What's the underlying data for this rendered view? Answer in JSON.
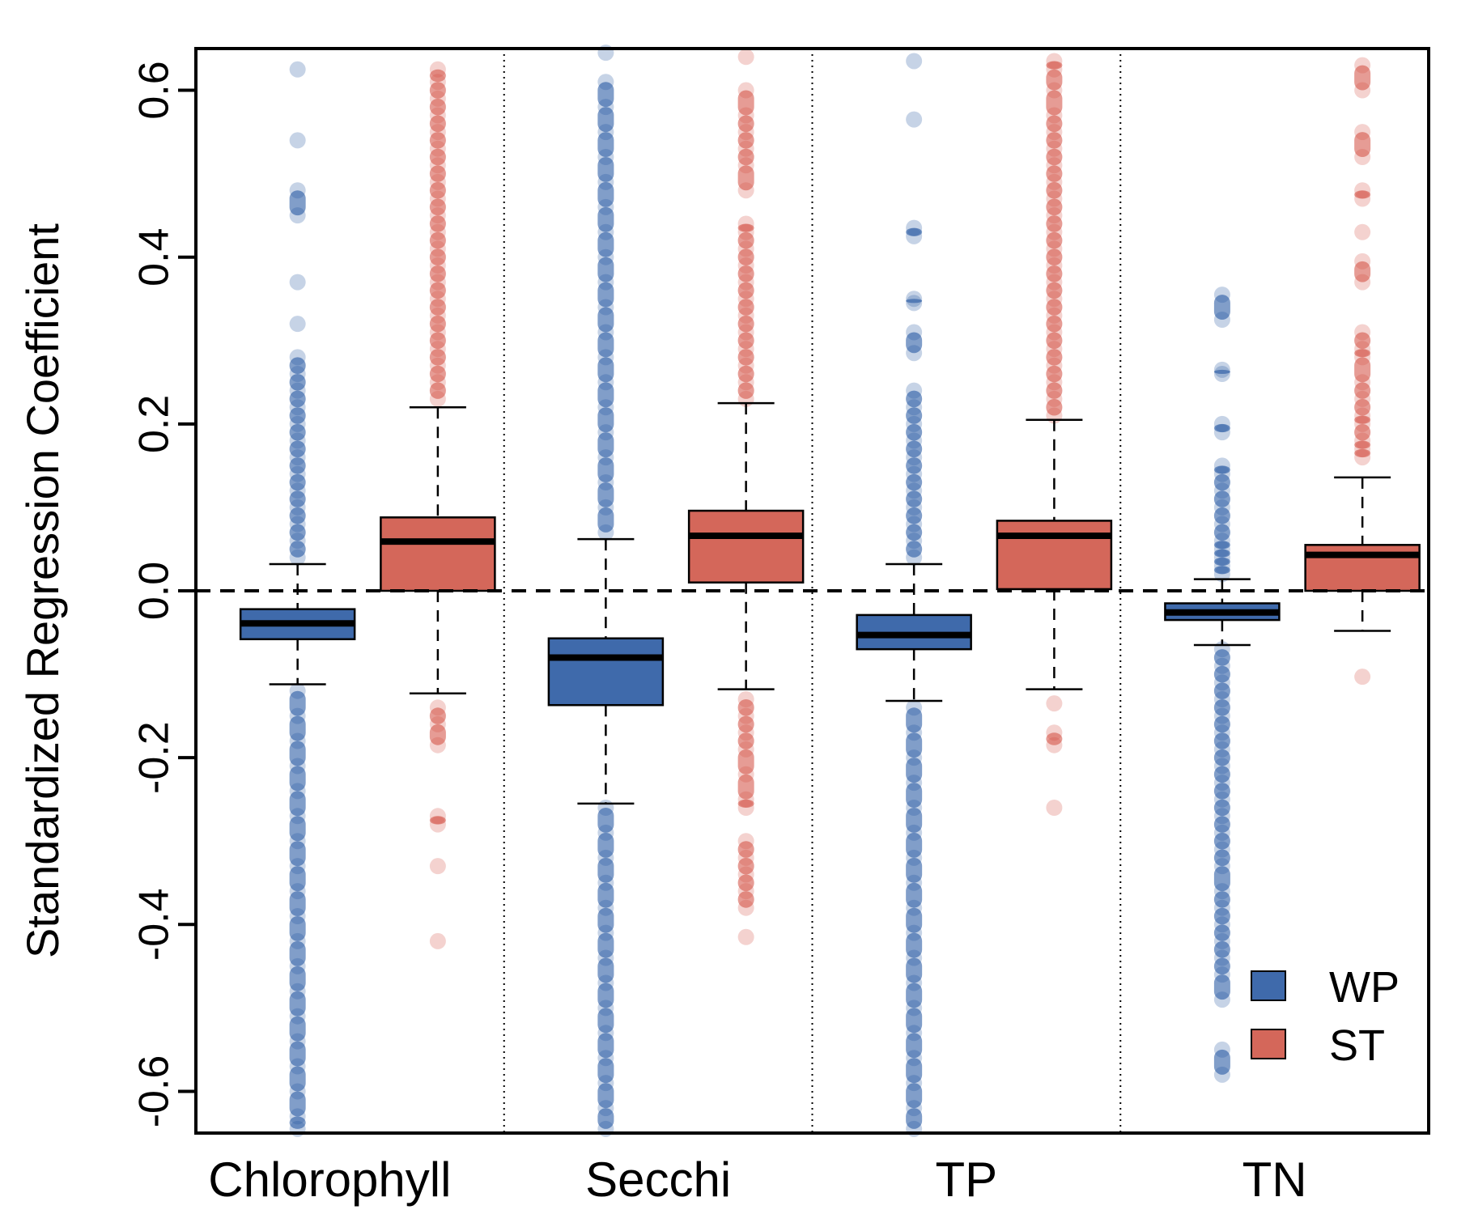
{
  "chart_data": {
    "type": "boxplot",
    "ylabel": "Standardized Regression Coefficient",
    "xlabel": "",
    "ylim": [
      -0.65,
      0.65
    ],
    "yticks": [
      -0.6,
      -0.4,
      -0.2,
      0.0,
      0.2,
      0.4,
      0.6
    ],
    "ytick_labels": [
      "-0.6",
      "-0.4",
      "-0.2",
      "0.0",
      "0.2",
      "0.4",
      "0.6"
    ],
    "reference_line_y": 0.0,
    "categories": [
      "Chlorophyll",
      "Secchi",
      "TP",
      "TN"
    ],
    "legend": {
      "position": "bottom-right",
      "entries": [
        {
          "name": "WP",
          "color": "#3f6aab"
        },
        {
          "name": "ST",
          "color": "#d4675a"
        }
      ]
    },
    "series": [
      {
        "name": "WP",
        "color": "#3f6aab",
        "point_color": "#1a4f9c",
        "boxes": [
          {
            "category": "Chlorophyll",
            "whisker_low": -0.112,
            "q1": -0.058,
            "median": -0.039,
            "q3": -0.022,
            "whisker_high": 0.032,
            "outliers_high": [
              0.04,
              0.06,
              0.08,
              0.1,
              0.12,
              0.14,
              0.16,
              0.18,
              0.2,
              0.22,
              0.24,
              0.26,
              0.28,
              0.32,
              0.37,
              0.45,
              0.48,
              0.54,
              0.625
            ],
            "outliers_low": [
              -0.12,
              -0.15,
              -0.18,
              -0.21,
              -0.24,
              -0.27,
              -0.3,
              -0.33,
              -0.36,
              -0.39,
              -0.42,
              -0.45,
              -0.48,
              -0.51,
              -0.54,
              -0.57,
              -0.6,
              -0.63,
              -0.645
            ]
          },
          {
            "category": "Secchi",
            "whisker_low": -0.255,
            "q1": -0.137,
            "median": -0.08,
            "q3": -0.057,
            "whisker_high": 0.062,
            "outliers_high": [
              0.07,
              0.1,
              0.13,
              0.16,
              0.19,
              0.22,
              0.25,
              0.28,
              0.31,
              0.34,
              0.37,
              0.4,
              0.43,
              0.46,
              0.49,
              0.52,
              0.55,
              0.58,
              0.61,
              0.645
            ],
            "outliers_low": [
              -0.26,
              -0.29,
              -0.32,
              -0.35,
              -0.38,
              -0.41,
              -0.44,
              -0.47,
              -0.5,
              -0.53,
              -0.56,
              -0.59,
              -0.62,
              -0.645
            ]
          },
          {
            "category": "TP",
            "whisker_low": -0.132,
            "q1": -0.07,
            "median": -0.053,
            "q3": -0.029,
            "whisker_high": 0.032,
            "outliers_high": [
              0.04,
              0.06,
              0.08,
              0.1,
              0.12,
              0.14,
              0.16,
              0.18,
              0.2,
              0.22,
              0.24,
              0.285,
              0.31,
              0.345,
              0.35,
              0.425,
              0.435,
              0.565,
              0.635
            ],
            "outliers_low": [
              -0.14,
              -0.17,
              -0.2,
              -0.23,
              -0.26,
              -0.29,
              -0.32,
              -0.35,
              -0.38,
              -0.41,
              -0.44,
              -0.47,
              -0.5,
              -0.53,
              -0.56,
              -0.59,
              -0.62,
              -0.645
            ]
          },
          {
            "category": "TN",
            "whisker_low": -0.065,
            "q1": -0.035,
            "median": -0.026,
            "q3": -0.015,
            "whisker_high": 0.014,
            "outliers_high": [
              0.02,
              0.03,
              0.04,
              0.05,
              0.06,
              0.08,
              0.1,
              0.12,
              0.14,
              0.15,
              0.19,
              0.2,
              0.26,
              0.265,
              0.325,
              0.355
            ],
            "outliers_low": [
              -0.07,
              -0.09,
              -0.11,
              -0.13,
              -0.15,
              -0.17,
              -0.19,
              -0.21,
              -0.23,
              -0.25,
              -0.27,
              -0.29,
              -0.31,
              -0.33,
              -0.36,
              -0.38,
              -0.4,
              -0.42,
              -0.44,
              -0.46,
              -0.49,
              -0.55,
              -0.58
            ]
          }
        ]
      },
      {
        "name": "ST",
        "color": "#d4675a",
        "point_color": "#d24b3e",
        "boxes": [
          {
            "category": "Chlorophyll",
            "whisker_low": -0.123,
            "q1": 0.0,
            "median": 0.059,
            "q3": 0.088,
            "whisker_high": 0.22,
            "outliers_high": [
              0.23,
              0.25,
              0.27,
              0.29,
              0.31,
              0.33,
              0.35,
              0.37,
              0.39,
              0.41,
              0.43,
              0.45,
              0.47,
              0.49,
              0.51,
              0.53,
              0.55,
              0.57,
              0.59,
              0.61,
              0.625
            ],
            "outliers_low": [
              -0.14,
              -0.16,
              -0.185,
              -0.27,
              -0.28,
              -0.33,
              -0.42
            ]
          },
          {
            "category": "Secchi",
            "whisker_low": -0.118,
            "q1": 0.01,
            "median": 0.066,
            "q3": 0.096,
            "whisker_high": 0.225,
            "outliers_high": [
              0.23,
              0.25,
              0.27,
              0.29,
              0.31,
              0.33,
              0.35,
              0.37,
              0.39,
              0.41,
              0.43,
              0.44,
              0.48,
              0.51,
              0.53,
              0.55,
              0.57,
              0.6,
              0.64
            ],
            "outliers_low": [
              -0.13,
              -0.15,
              -0.17,
              -0.19,
              -0.22,
              -0.25,
              -0.26,
              -0.3,
              -0.32,
              -0.34,
              -0.36,
              -0.38,
              -0.415
            ]
          },
          {
            "category": "TP",
            "whisker_low": -0.118,
            "q1": 0.002,
            "median": 0.066,
            "q3": 0.084,
            "whisker_high": 0.205,
            "outliers_high": [
              0.21,
              0.23,
              0.25,
              0.27,
              0.29,
              0.31,
              0.33,
              0.35,
              0.37,
              0.39,
              0.41,
              0.43,
              0.45,
              0.47,
              0.49,
              0.51,
              0.53,
              0.55,
              0.57,
              0.6,
              0.625,
              0.635
            ],
            "outliers_low": [
              -0.135,
              -0.17,
              -0.185,
              -0.26
            ]
          },
          {
            "category": "TN",
            "whisker_low": -0.048,
            "q1": 0.0,
            "median": 0.043,
            "q3": 0.055,
            "whisker_high": 0.136,
            "outliers_high": [
              0.16,
              0.17,
              0.18,
              0.2,
              0.21,
              0.23,
              0.25,
              0.28,
              0.29,
              0.31,
              0.37,
              0.395,
              0.43,
              0.47,
              0.48,
              0.52,
              0.55,
              0.6,
              0.63
            ],
            "outliers_low": [
              -0.103
            ]
          }
        ]
      }
    ]
  }
}
